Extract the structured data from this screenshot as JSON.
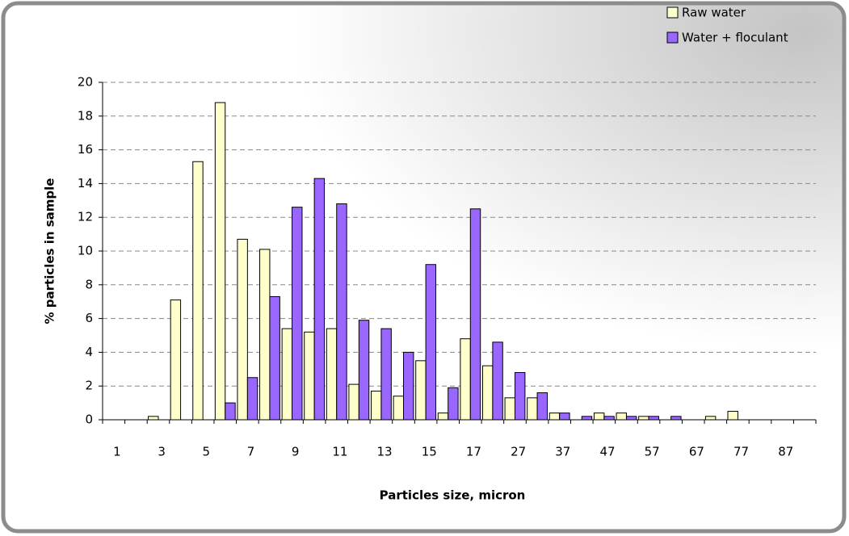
{
  "chart_data": {
    "type": "bar",
    "x_label": "Particles size, micron",
    "y_label": "% particles in sample",
    "categories": [
      "1",
      null,
      "3",
      null,
      "5",
      null,
      "7",
      null,
      "9",
      null,
      "11",
      null,
      "13",
      null,
      "15",
      null,
      "17",
      null,
      "27",
      null,
      "37",
      null,
      "47",
      null,
      "57",
      null,
      "67",
      null,
      "77",
      null,
      "87",
      null
    ],
    "series": [
      {
        "name": "Raw water",
        "color": "#ffffcc",
        "values": [
          0,
          0,
          0.2,
          7.1,
          15.3,
          18.8,
          10.7,
          10.1,
          5.4,
          5.2,
          5.4,
          2.1,
          1.7,
          1.4,
          3.5,
          0.4,
          4.8,
          3.2,
          1.3,
          1.3,
          0.4,
          0,
          0.4,
          0.4,
          0.2,
          0,
          0,
          0.2,
          0.5,
          0,
          0,
          0
        ]
      },
      {
        "name": "Water + floculant",
        "color": "#9966ff",
        "values": [
          0,
          0,
          0,
          0,
          0,
          1.0,
          2.5,
          7.3,
          12.6,
          14.3,
          12.8,
          5.9,
          5.4,
          4.0,
          9.2,
          1.9,
          12.5,
          4.6,
          2.8,
          1.6,
          0.4,
          0.2,
          0.2,
          0.2,
          0.2,
          0.2,
          0,
          0,
          0,
          0,
          0,
          0
        ]
      }
    ],
    "ylim": [
      0,
      20
    ],
    "yticks": [
      0,
      2,
      4,
      6,
      8,
      10,
      12,
      14,
      16,
      18,
      20
    ],
    "grid": true,
    "legend": "top-right"
  }
}
